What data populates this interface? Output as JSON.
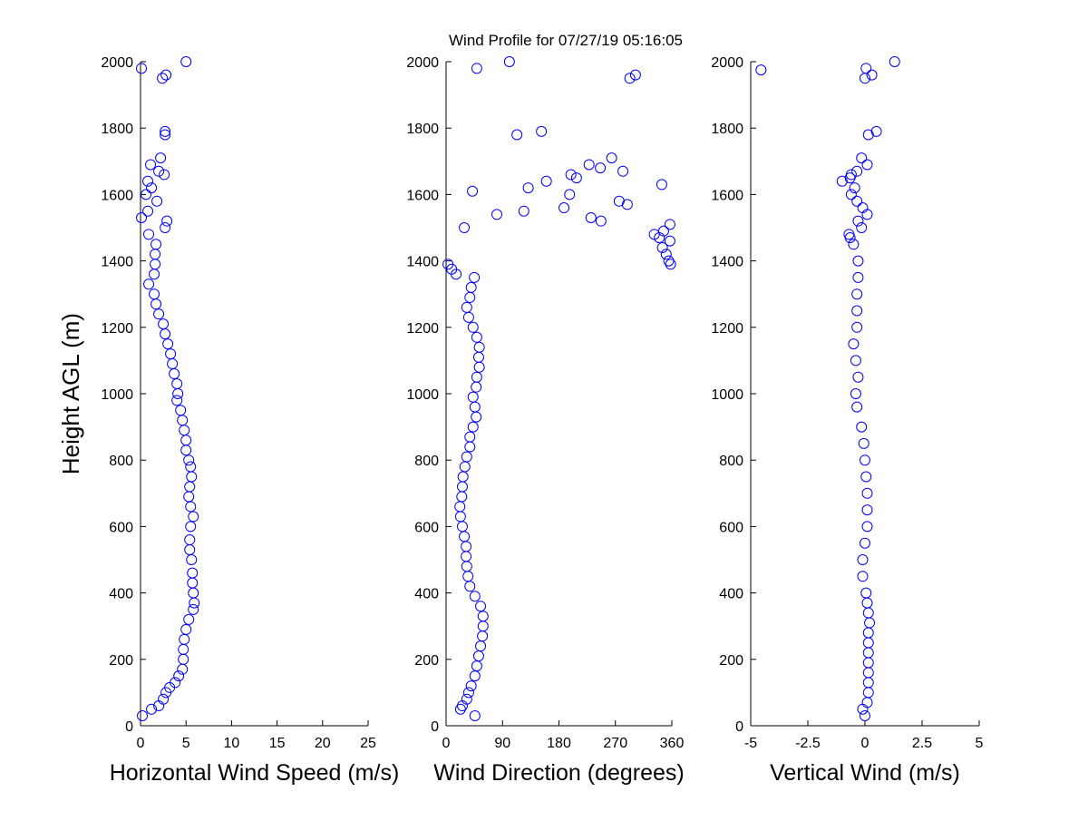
{
  "title": "Wind Profile for  07/27/19 05:16:05",
  "ylabel": "Height AGL (m)",
  "colors": {
    "marker": "#0000ff",
    "axis": "#000000",
    "background": "#ffffff"
  },
  "chart_data": [
    {
      "type": "scatter",
      "xlabel": "Horizontal Wind Speed (m/s)",
      "ylabel": "Height AGL (m)",
      "xlim": [
        0,
        25
      ],
      "ylim": [
        0,
        2000
      ],
      "xticks": [
        "0",
        "5",
        "10",
        "15",
        "20",
        "25"
      ],
      "xtick_values": [
        0,
        5,
        10,
        15,
        20,
        25
      ],
      "yticks": [
        "0",
        "200",
        "400",
        "600",
        "800",
        "1000",
        "1200",
        "1400",
        "1600",
        "1800",
        "2000"
      ],
      "marker": "open-circle",
      "grid": false,
      "points": [
        [
          0.2,
          30
        ],
        [
          1.2,
          50
        ],
        [
          2.0,
          60
        ],
        [
          2.5,
          80
        ],
        [
          2.8,
          100
        ],
        [
          3.2,
          115
        ],
        [
          3.8,
          130
        ],
        [
          4.2,
          150
        ],
        [
          4.6,
          170
        ],
        [
          4.7,
          200
        ],
        [
          4.7,
          230
        ],
        [
          4.8,
          260
        ],
        [
          5.0,
          290
        ],
        [
          5.3,
          320
        ],
        [
          5.8,
          350
        ],
        [
          5.9,
          370
        ],
        [
          5.8,
          400
        ],
        [
          5.7,
          430
        ],
        [
          5.7,
          460
        ],
        [
          5.6,
          500
        ],
        [
          5.4,
          530
        ],
        [
          5.4,
          560
        ],
        [
          5.5,
          600
        ],
        [
          5.8,
          630
        ],
        [
          5.5,
          660
        ],
        [
          5.3,
          690
        ],
        [
          5.4,
          720
        ],
        [
          5.6,
          750
        ],
        [
          5.5,
          780
        ],
        [
          5.3,
          800
        ],
        [
          5.0,
          830
        ],
        [
          5.0,
          860
        ],
        [
          4.8,
          890
        ],
        [
          4.6,
          920
        ],
        [
          4.4,
          950
        ],
        [
          4.0,
          980
        ],
        [
          4.1,
          1000
        ],
        [
          4.0,
          1030
        ],
        [
          3.7,
          1060
        ],
        [
          3.5,
          1090
        ],
        [
          3.3,
          1120
        ],
        [
          3.0,
          1150
        ],
        [
          2.7,
          1180
        ],
        [
          2.5,
          1210
        ],
        [
          2.0,
          1240
        ],
        [
          1.7,
          1270
        ],
        [
          1.5,
          1300
        ],
        [
          0.9,
          1330
        ],
        [
          1.5,
          1360
        ],
        [
          1.6,
          1390
        ],
        [
          1.6,
          1420
        ],
        [
          1.7,
          1450
        ],
        [
          0.9,
          1480
        ],
        [
          2.7,
          1500
        ],
        [
          2.9,
          1520
        ],
        [
          0.1,
          1530
        ],
        [
          0.8,
          1550
        ],
        [
          1.8,
          1580
        ],
        [
          0.6,
          1600
        ],
        [
          1.2,
          1620
        ],
        [
          0.8,
          1640
        ],
        [
          2.6,
          1660
        ],
        [
          2.0,
          1670
        ],
        [
          1.1,
          1690
        ],
        [
          2.2,
          1710
        ],
        [
          2.7,
          1780
        ],
        [
          2.7,
          1790
        ],
        [
          2.4,
          1950
        ],
        [
          2.8,
          1960
        ],
        [
          0.1,
          1980
        ],
        [
          5.0,
          2000
        ]
      ]
    },
    {
      "type": "scatter",
      "xlabel": "Wind Direction (degrees)",
      "xlim": [
        0,
        360
      ],
      "ylim": [
        0,
        2000
      ],
      "xticks": [
        "0",
        "90",
        "180",
        "270",
        "360"
      ],
      "xtick_values": [
        0,
        90,
        180,
        270,
        360
      ],
      "yticks": [
        "0",
        "200",
        "400",
        "600",
        "800",
        "1000",
        "1200",
        "1400",
        "1600",
        "1800",
        "2000"
      ],
      "marker": "open-circle",
      "grid": false,
      "points": [
        [
          46,
          30
        ],
        [
          23,
          50
        ],
        [
          26,
          60
        ],
        [
          33,
          80
        ],
        [
          36,
          100
        ],
        [
          40,
          120
        ],
        [
          46,
          150
        ],
        [
          49,
          180
        ],
        [
          52,
          210
        ],
        [
          55,
          240
        ],
        [
          58,
          270
        ],
        [
          59,
          300
        ],
        [
          59,
          330
        ],
        [
          55,
          360
        ],
        [
          46,
          390
        ],
        [
          38,
          420
        ],
        [
          35,
          450
        ],
        [
          33,
          480
        ],
        [
          32,
          510
        ],
        [
          32,
          540
        ],
        [
          29,
          570
        ],
        [
          26,
          600
        ],
        [
          23,
          630
        ],
        [
          22,
          660
        ],
        [
          25,
          690
        ],
        [
          26,
          720
        ],
        [
          27,
          750
        ],
        [
          30,
          780
        ],
        [
          33,
          810
        ],
        [
          38,
          840
        ],
        [
          38,
          870
        ],
        [
          43,
          900
        ],
        [
          48,
          930
        ],
        [
          46,
          960
        ],
        [
          43,
          990
        ],
        [
          48,
          1020
        ],
        [
          49,
          1050
        ],
        [
          53,
          1080
        ],
        [
          52,
          1110
        ],
        [
          53,
          1140
        ],
        [
          49,
          1170
        ],
        [
          43,
          1200
        ],
        [
          36,
          1230
        ],
        [
          33,
          1260
        ],
        [
          38,
          1290
        ],
        [
          40,
          1320
        ],
        [
          45,
          1350
        ],
        [
          16,
          1360
        ],
        [
          9,
          1375
        ],
        [
          3,
          1390
        ],
        [
          358,
          1390
        ],
        [
          355,
          1400
        ],
        [
          351,
          1420
        ],
        [
          345,
          1440
        ],
        [
          357,
          1460
        ],
        [
          340,
          1470
        ],
        [
          332,
          1480
        ],
        [
          347,
          1490
        ],
        [
          29,
          1500
        ],
        [
          357,
          1510
        ],
        [
          247,
          1520
        ],
        [
          231,
          1530
        ],
        [
          81,
          1540
        ],
        [
          124,
          1550
        ],
        [
          188,
          1560
        ],
        [
          289,
          1570
        ],
        [
          276,
          1580
        ],
        [
          197,
          1600
        ],
        [
          42,
          1610
        ],
        [
          131,
          1620
        ],
        [
          344,
          1630
        ],
        [
          160,
          1640
        ],
        [
          208,
          1650
        ],
        [
          199,
          1660
        ],
        [
          282,
          1670
        ],
        [
          246,
          1680
        ],
        [
          228,
          1690
        ],
        [
          264,
          1710
        ],
        [
          113,
          1780
        ],
        [
          152,
          1790
        ],
        [
          293,
          1950
        ],
        [
          302,
          1960
        ],
        [
          49,
          1980
        ],
        [
          101,
          2000
        ]
      ]
    },
    {
      "type": "scatter",
      "xlabel": "Vertical Wind (m/s)",
      "xlim": [
        -5,
        5
      ],
      "ylim": [
        0,
        2000
      ],
      "xticks": [
        "-5",
        "-2.5",
        "0",
        "2.5",
        "5"
      ],
      "xtick_values": [
        -5,
        -2.5,
        0,
        2.5,
        5
      ],
      "yticks": [
        "0",
        "200",
        "400",
        "600",
        "800",
        "1000",
        "1200",
        "1400",
        "1600",
        "1800",
        "2000"
      ],
      "marker": "open-circle",
      "grid": false,
      "points": [
        [
          0,
          30
        ],
        [
          -0.1,
          50
        ],
        [
          0.1,
          70
        ],
        [
          0.15,
          100
        ],
        [
          0.15,
          130
        ],
        [
          0.15,
          160
        ],
        [
          0.15,
          190
        ],
        [
          0.15,
          220
        ],
        [
          0.15,
          250
        ],
        [
          0.15,
          280
        ],
        [
          0.2,
          310
        ],
        [
          0.15,
          340
        ],
        [
          0.1,
          370
        ],
        [
          0.05,
          400
        ],
        [
          -0.1,
          450
        ],
        [
          -0.1,
          500
        ],
        [
          0,
          550
        ],
        [
          0.1,
          600
        ],
        [
          0.1,
          650
        ],
        [
          0.1,
          700
        ],
        [
          0.05,
          750
        ],
        [
          0,
          800
        ],
        [
          -0.05,
          850
        ],
        [
          -0.15,
          900
        ],
        [
          -0.35,
          960
        ],
        [
          -0.4,
          1000
        ],
        [
          -0.3,
          1050
        ],
        [
          -0.4,
          1100
        ],
        [
          -0.5,
          1150
        ],
        [
          -0.35,
          1200
        ],
        [
          -0.35,
          1250
        ],
        [
          -0.35,
          1300
        ],
        [
          -0.3,
          1350
        ],
        [
          -0.3,
          1400
        ],
        [
          -0.5,
          1450
        ],
        [
          -0.65,
          1470
        ],
        [
          -0.7,
          1480
        ],
        [
          -0.15,
          1500
        ],
        [
          -0.3,
          1520
        ],
        [
          0.1,
          1540
        ],
        [
          -0.1,
          1560
        ],
        [
          -0.35,
          1580
        ],
        [
          -0.6,
          1600
        ],
        [
          -0.45,
          1620
        ],
        [
          -1.0,
          1640
        ],
        [
          -0.65,
          1650
        ],
        [
          -0.6,
          1660
        ],
        [
          -0.35,
          1670
        ],
        [
          0.1,
          1690
        ],
        [
          -0.15,
          1710
        ],
        [
          0.15,
          1780
        ],
        [
          0.5,
          1790
        ],
        [
          0,
          1950
        ],
        [
          0.3,
          1960
        ],
        [
          -4.55,
          1975
        ],
        [
          0.05,
          1980
        ],
        [
          1.3,
          2000
        ]
      ]
    }
  ]
}
